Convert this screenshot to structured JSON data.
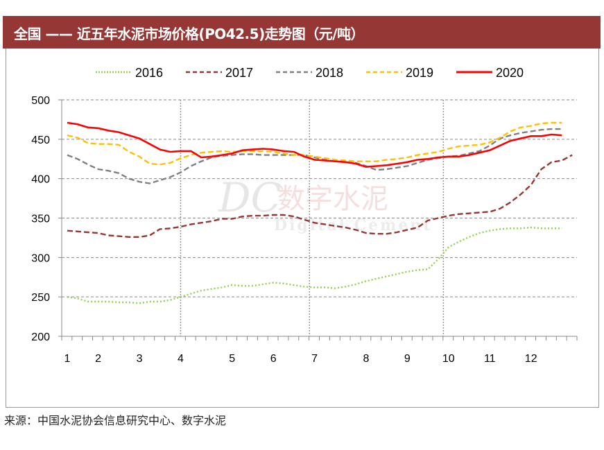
{
  "header": {
    "title": "全国 —— 近五年水泥市场价格(PO42.5)走势图（元/吨）"
  },
  "footer": {
    "source": "来源：中国水泥协会信息研究中心、数字水泥"
  },
  "watermark": {
    "logo": "DC",
    "cn": "数字水泥",
    "en": "Digital Cement"
  },
  "chart_data": {
    "type": "line",
    "title": "",
    "xlabel": "",
    "ylabel": "",
    "ylim": [
      200,
      500
    ],
    "yticks": [
      200,
      250,
      300,
      350,
      400,
      450,
      500
    ],
    "x_unit": "week",
    "xlim": [
      0.5,
      50.5
    ],
    "month_ticks": [
      {
        "label": "1",
        "week": 1
      },
      {
        "label": "2",
        "week": 4
      },
      {
        "label": "3",
        "week": 8
      },
      {
        "label": "4",
        "week": 12
      },
      {
        "label": "5",
        "week": 17
      },
      {
        "label": "6",
        "week": 21
      },
      {
        "label": "7",
        "week": 25
      },
      {
        "label": "8",
        "week": 30
      },
      {
        "label": "9",
        "week": 34
      },
      {
        "label": "10",
        "week": 38
      },
      {
        "label": "11",
        "week": 42
      },
      {
        "label": "12",
        "week": 46
      }
    ],
    "grid": "horizontal dashed",
    "legend_placement": "top",
    "series": [
      {
        "name": "2016",
        "color": "#92D050",
        "style": "dotted",
        "values": [
          250,
          248,
          244,
          244,
          244,
          243,
          243,
          242,
          244,
          244,
          246,
          250,
          254,
          258,
          260,
          262,
          265,
          264,
          264,
          266,
          268,
          267,
          265,
          263,
          262,
          262,
          261,
          263,
          266,
          270,
          273,
          276,
          279,
          282,
          284,
          285,
          298,
          313,
          320,
          326,
          331,
          334,
          336,
          337,
          337,
          338,
          337,
          337,
          337
        ]
      },
      {
        "name": "2017",
        "color": "#953735",
        "style": "dashed",
        "values": [
          334,
          333,
          332,
          331,
          328,
          327,
          326,
          326,
          328,
          336,
          337,
          339,
          342,
          344,
          346,
          349,
          349,
          352,
          353,
          353,
          354,
          354,
          352,
          348,
          344,
          342,
          340,
          338,
          335,
          331,
          330,
          330,
          332,
          335,
          338,
          347,
          350,
          353,
          355,
          356,
          357,
          358,
          362,
          370,
          380,
          392,
          412,
          421,
          423,
          430
        ]
      },
      {
        "name": "2018",
        "color": "#808080",
        "style": "dashed",
        "values": [
          430,
          425,
          418,
          412,
          410,
          407,
          400,
          396,
          394,
          398,
          402,
          408,
          416,
          422,
          427,
          429,
          430,
          431,
          431,
          430,
          430,
          430,
          430,
          430,
          427,
          424,
          422,
          421,
          420,
          416,
          411,
          412,
          414,
          416,
          420,
          424,
          426,
          428,
          429,
          432,
          435,
          442,
          451,
          455,
          458,
          460,
          462,
          463,
          463
        ]
      },
      {
        "name": "2019",
        "color": "#FFC000",
        "style": "dashed",
        "values": [
          455,
          452,
          445,
          444,
          444,
          443,
          434,
          428,
          419,
          418,
          420,
          426,
          430,
          433,
          434,
          435,
          434,
          435,
          435,
          435,
          434,
          432,
          430,
          430,
          428,
          426,
          424,
          423,
          422,
          422,
          422,
          424,
          425,
          427,
          430,
          432,
          434,
          438,
          441,
          442,
          443,
          446,
          452,
          460,
          465,
          467,
          470,
          471,
          471
        ]
      },
      {
        "name": "2020",
        "color": "#FF0000",
        "style": "solid",
        "values": [
          471,
          469,
          465,
          464,
          461,
          459,
          455,
          451,
          444,
          437,
          434,
          435,
          435,
          427,
          428,
          430,
          432,
          436,
          437,
          438,
          437,
          435,
          434,
          428,
          424,
          423,
          422,
          421,
          419,
          415,
          416,
          417,
          419,
          421,
          424,
          425,
          427,
          428,
          428,
          430,
          433,
          436,
          442,
          448,
          451,
          454,
          454,
          456,
          455
        ]
      }
    ]
  }
}
